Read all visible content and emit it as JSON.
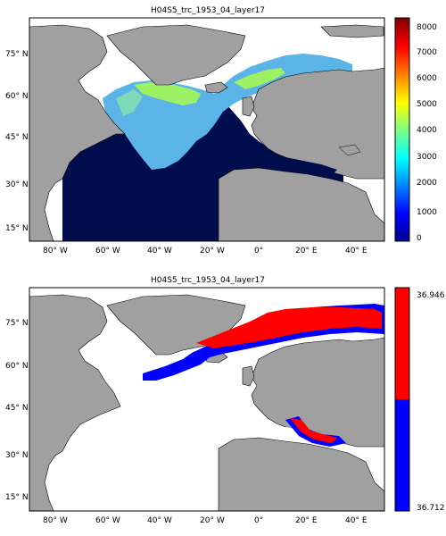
{
  "panels": [
    {
      "title": "H04S5_trc_1953_04_layer17",
      "colorbar_ticks": [
        "8000",
        "7000",
        "6000",
        "5000",
        "4000",
        "3000",
        "2000",
        "1000",
        "0"
      ],
      "colorbar_range": [
        0,
        8000
      ],
      "colorbar_type": "jet"
    },
    {
      "title": "H04S5_trc_1953_04_layer17",
      "colorbar_ticks": [
        "36.946",
        "36.712"
      ],
      "colorbar_range": [
        36.712,
        36.946
      ],
      "colorbar_type": "two-color",
      "colors": {
        "high": "#ff0000",
        "low": "#0000ff"
      }
    }
  ],
  "lat_ticks": [
    "75° N",
    "60° N",
    "45° N",
    "30° N",
    "15° N"
  ],
  "lon_ticks": [
    "80° W",
    "60° W",
    "40° W",
    "20° W",
    "0°",
    "20° E",
    "40° E"
  ],
  "colors": {
    "land": "#a0a0a0",
    "ocean_deep": "#000d4d",
    "no_data": "#ffffff"
  }
}
